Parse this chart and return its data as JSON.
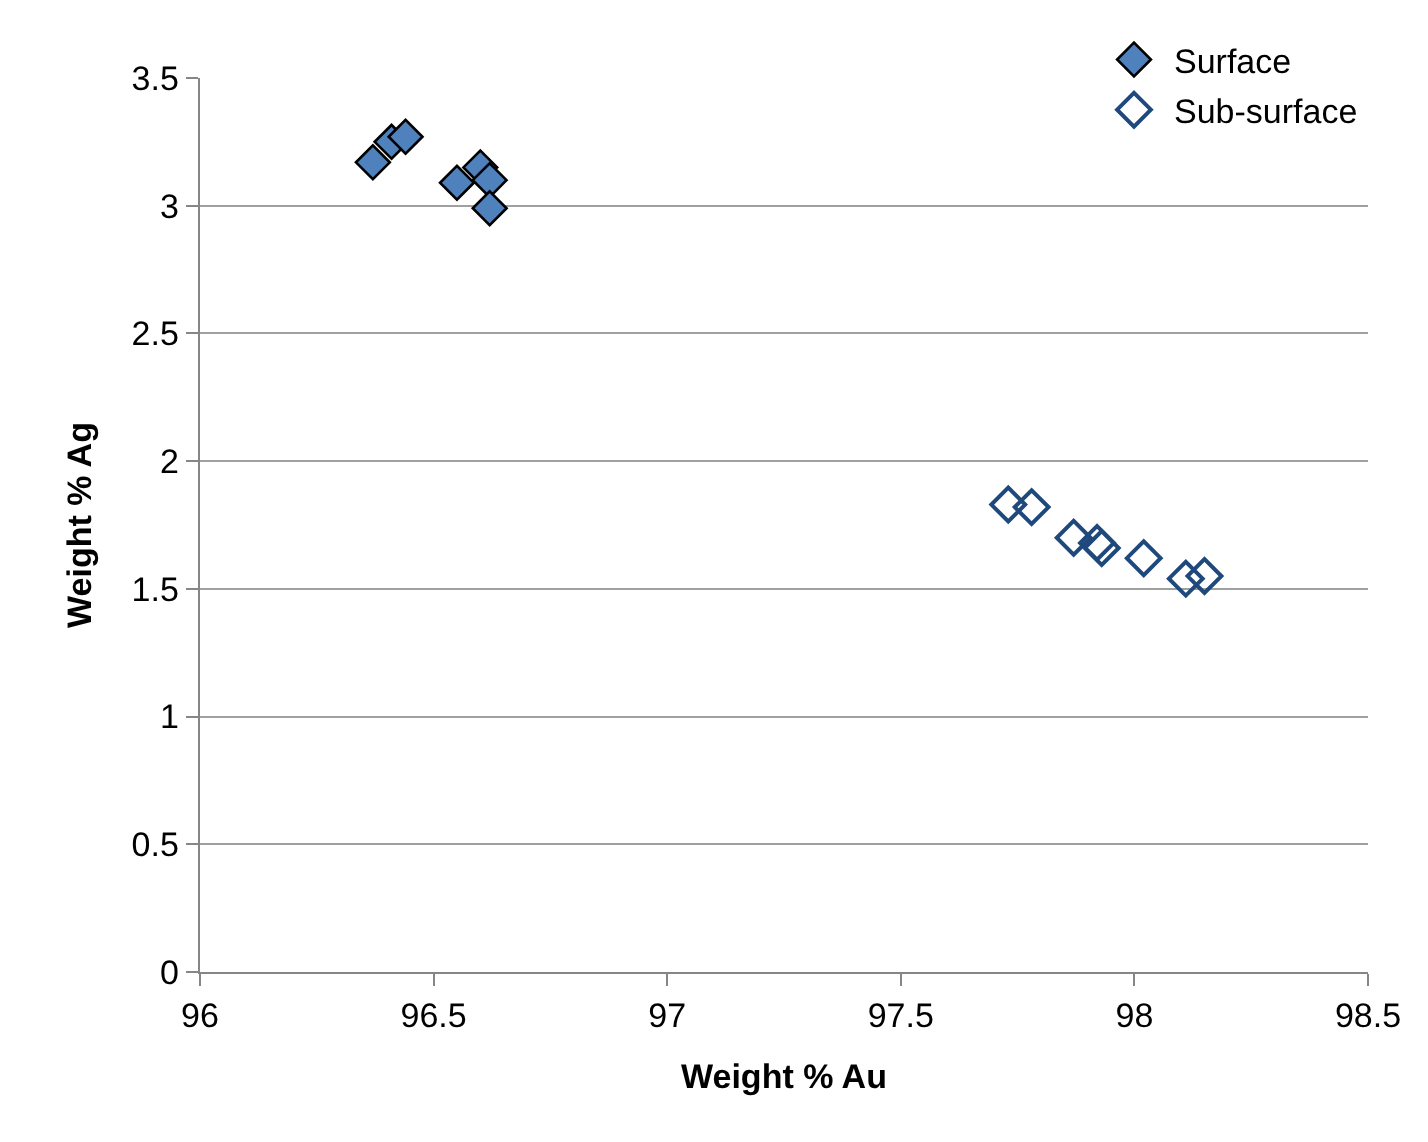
{
  "chart_data": {
    "type": "scatter",
    "xlabel": "Weight % Au",
    "ylabel": "Weight % Ag",
    "xlim": [
      96,
      98.5
    ],
    "xticks": [
      96,
      96.5,
      97,
      97.5,
      98,
      98.5
    ],
    "ylim": [
      0,
      3.5
    ],
    "yticks": [
      0,
      0.5,
      1,
      1.5,
      2,
      2.5,
      3,
      3.5
    ],
    "grid": "y",
    "legend": "top right",
    "marker": "diamond",
    "series": [
      {
        "name": "Surface",
        "color": "#4f81bd",
        "x": [
          96.37,
          96.41,
          96.44,
          96.55,
          96.6,
          96.62,
          96.62
        ],
        "values": [
          3.17,
          3.25,
          3.27,
          3.09,
          3.15,
          3.1,
          2.99
        ]
      },
      {
        "name": "Sub-surface",
        "color": "#1f497d",
        "marker": "diamond-open",
        "x": [
          97.73,
          97.78,
          97.87,
          97.92,
          97.93,
          98.02,
          98.11,
          98.15
        ],
        "values": [
          1.83,
          1.82,
          1.7,
          1.68,
          1.66,
          1.62,
          1.54,
          1.55
        ]
      }
    ]
  }
}
